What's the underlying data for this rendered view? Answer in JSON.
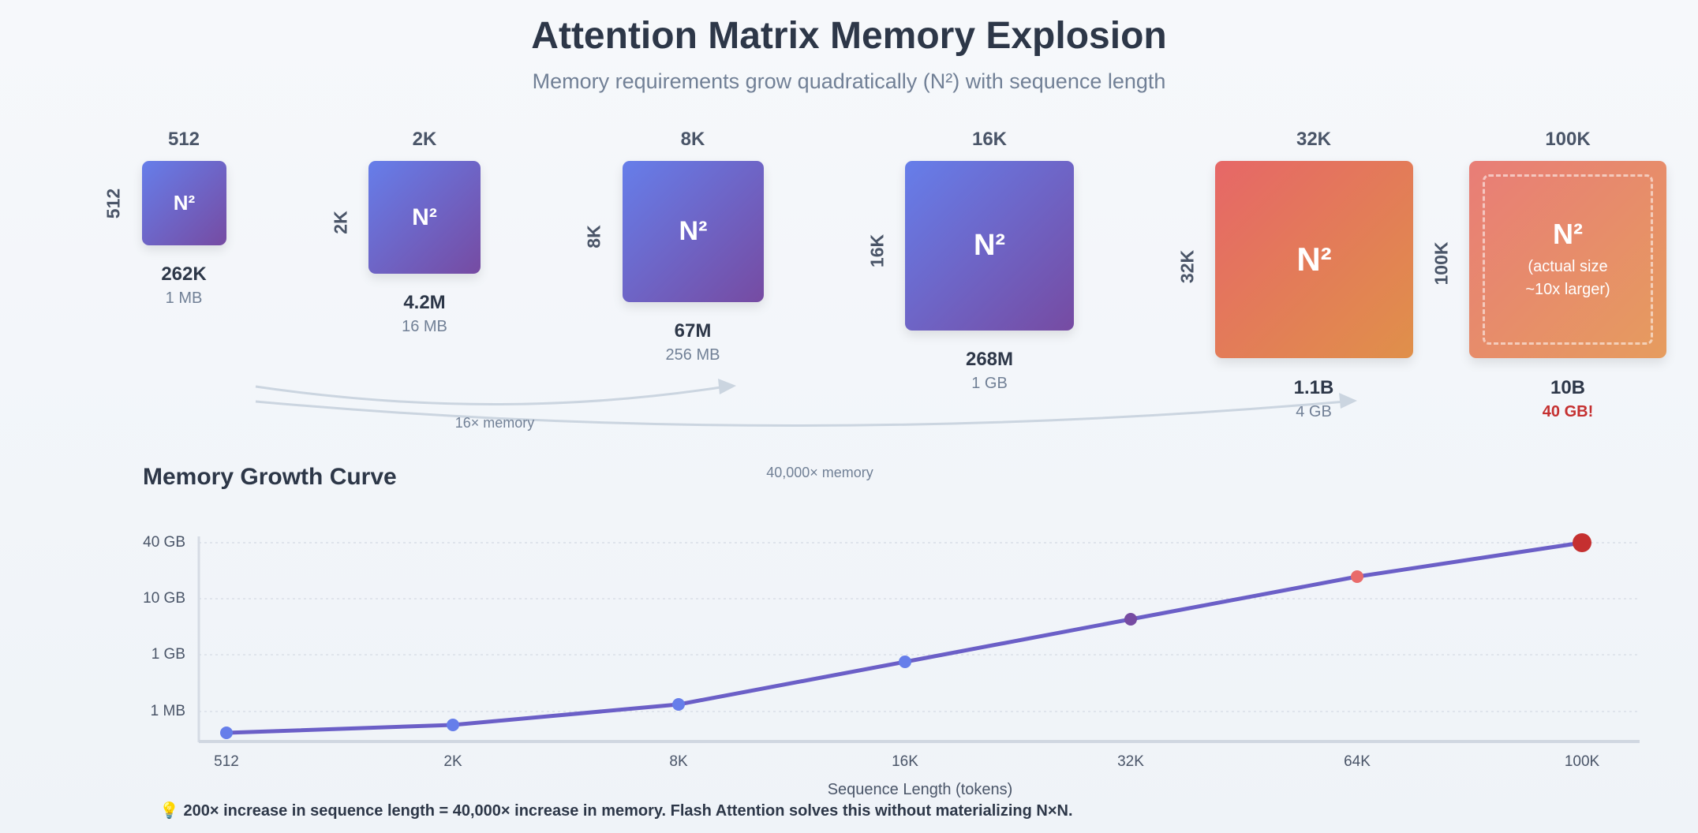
{
  "header": {
    "title": "Attention Matrix Memory Explosion",
    "subtitle": "Memory requirements grow quadratically (N²) with sequence length"
  },
  "matrices": [
    {
      "label": "512",
      "symbol": "N²",
      "elements": "262K",
      "memory": "1 MB",
      "color": "#667eea"
    },
    {
      "label": "2K",
      "symbol": "N²",
      "elements": "4.2M",
      "memory": "16 MB",
      "color": "#667eea"
    },
    {
      "label": "8K",
      "symbol": "N²",
      "elements": "67M",
      "memory": "256 MB",
      "color": "#667eea"
    },
    {
      "label": "16K",
      "symbol": "N²",
      "elements": "268M",
      "memory": "1 GB",
      "color": "#667eea"
    },
    {
      "label": "32K",
      "symbol": "N²",
      "elements": "1.1B",
      "memory": "4 GB",
      "color": "#e66767"
    },
    {
      "label": "100K",
      "symbol": "N²",
      "note_line1": "(actual size",
      "note_line2": "~10x larger)",
      "elements": "10B",
      "memory": "40 GB!",
      "color": "#e87d77",
      "memory_color": "#c53030"
    }
  ],
  "arrows": [
    {
      "label": "16× memory"
    },
    {
      "label": "40,000× memory"
    }
  ],
  "chart_data": {
    "type": "line",
    "title": "Memory Growth Curve",
    "xlabel": "Sequence Length (tokens)",
    "ylabel": "",
    "categories": [
      "512",
      "2K",
      "8K",
      "16K",
      "32K",
      "64K",
      "100K"
    ],
    "values_gb": [
      0.001,
      0.016,
      0.256,
      1,
      4,
      16,
      40
    ],
    "y_ticks": [
      "40 GB",
      "10 GB",
      "1 GB",
      "1 MB"
    ],
    "y_scale": "non-linear (log-like)",
    "grid": "horizontal dotted",
    "line_color": "#6b5fc7",
    "point_colors": [
      "#667eea",
      "#667eea",
      "#667eea",
      "#667eea",
      "#764ba2",
      "#e96b6b",
      "#c53030"
    ]
  },
  "footnote": {
    "icon": "lightbulb-icon",
    "text": "200× increase in sequence length = 40,000× increase in memory. Flash Attention solves this without materializing N×N."
  }
}
